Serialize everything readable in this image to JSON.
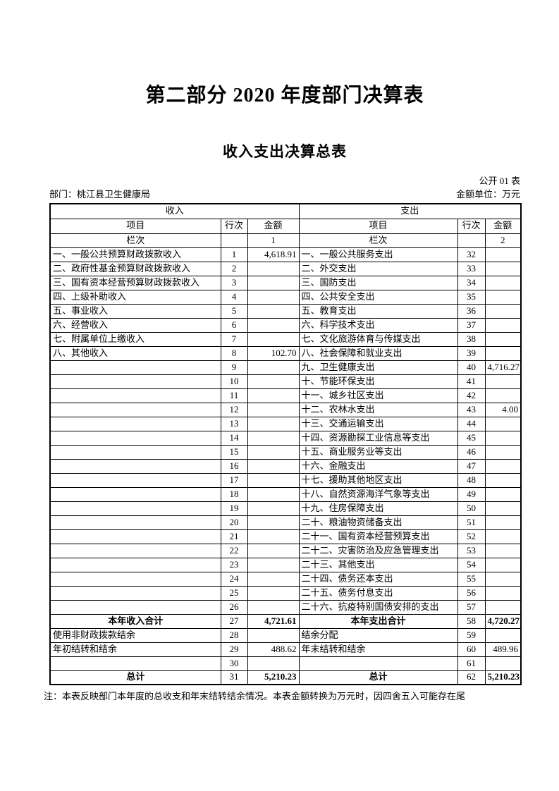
{
  "page": {
    "title": "第二部分 2020 年度部门决算表",
    "subtitle": "收入支出决算总表",
    "table_code": "公开 01 表",
    "department_label": "部门：桃江县卫生健康局",
    "unit_label": "金额单位：万元",
    "note": "注：本表反映部门本年度的总收支和年末结转结余情况。本表金额转换为万元时，因四舍五入可能存在尾"
  },
  "table": {
    "income_header": "收入",
    "expense_header": "支出",
    "col_headers": {
      "item": "项目",
      "row_no": "行次",
      "amount": "金额"
    },
    "lane_label": "栏次",
    "income_lane_no": "1",
    "expense_lane_no": "2",
    "rows": [
      {
        "i_item": "一、一般公共预算财政拨款收入",
        "i_no": "1",
        "i_amt": "4,618.91",
        "e_item": "一、一般公共服务支出",
        "e_no": "32",
        "e_amt": ""
      },
      {
        "i_item": "二、政府性基金预算财政拨款收入",
        "i_no": "2",
        "i_amt": "",
        "e_item": "二、外交支出",
        "e_no": "33",
        "e_amt": ""
      },
      {
        "i_item": "三、国有资本经营预算财政拨款收入",
        "i_no": "3",
        "i_amt": "",
        "e_item": "三、国防支出",
        "e_no": "34",
        "e_amt": ""
      },
      {
        "i_item": "四、上级补助收入",
        "i_no": "4",
        "i_amt": "",
        "e_item": "四、公共安全支出",
        "e_no": "35",
        "e_amt": ""
      },
      {
        "i_item": "五、事业收入",
        "i_no": "5",
        "i_amt": "",
        "e_item": "五、教育支出",
        "e_no": "36",
        "e_amt": ""
      },
      {
        "i_item": "六、经营收入",
        "i_no": "6",
        "i_amt": "",
        "e_item": "六、科学技术支出",
        "e_no": "37",
        "e_amt": ""
      },
      {
        "i_item": "七、附属单位上缴收入",
        "i_no": "7",
        "i_amt": "",
        "e_item": "七、文化旅游体育与传媒支出",
        "e_no": "38",
        "e_amt": ""
      },
      {
        "i_item": "八、其他收入",
        "i_no": "8",
        "i_amt": "102.70",
        "e_item": "八、社会保障和就业支出",
        "e_no": "39",
        "e_amt": ""
      },
      {
        "i_item": "",
        "i_no": "9",
        "i_amt": "",
        "e_item": "九、卫生健康支出",
        "e_no": "40",
        "e_amt": "4,716.27"
      },
      {
        "i_item": "",
        "i_no": "10",
        "i_amt": "",
        "e_item": "十、节能环保支出",
        "e_no": "41",
        "e_amt": ""
      },
      {
        "i_item": "",
        "i_no": "11",
        "i_amt": "",
        "e_item": "十一、城乡社区支出",
        "e_no": "42",
        "e_amt": ""
      },
      {
        "i_item": "",
        "i_no": "12",
        "i_amt": "",
        "e_item": "十二、农林水支出",
        "e_no": "43",
        "e_amt": "4.00"
      },
      {
        "i_item": "",
        "i_no": "13",
        "i_amt": "",
        "e_item": "十三、交通运输支出",
        "e_no": "44",
        "e_amt": ""
      },
      {
        "i_item": "",
        "i_no": "14",
        "i_amt": "",
        "e_item": "十四、资源勘探工业信息等支出",
        "e_no": "45",
        "e_amt": ""
      },
      {
        "i_item": "",
        "i_no": "15",
        "i_amt": "",
        "e_item": "十五、商业服务业等支出",
        "e_no": "46",
        "e_amt": ""
      },
      {
        "i_item": "",
        "i_no": "16",
        "i_amt": "",
        "e_item": "十六、金融支出",
        "e_no": "47",
        "e_amt": ""
      },
      {
        "i_item": "",
        "i_no": "17",
        "i_amt": "",
        "e_item": "十七、援助其他地区支出",
        "e_no": "48",
        "e_amt": ""
      },
      {
        "i_item": "",
        "i_no": "18",
        "i_amt": "",
        "e_item": "十八、自然资源海洋气象等支出",
        "e_no": "49",
        "e_amt": ""
      },
      {
        "i_item": "",
        "i_no": "19",
        "i_amt": "",
        "e_item": "十九、住房保障支出",
        "e_no": "50",
        "e_amt": ""
      },
      {
        "i_item": "",
        "i_no": "20",
        "i_amt": "",
        "e_item": "二十、粮油物资储备支出",
        "e_no": "51",
        "e_amt": ""
      },
      {
        "i_item": "",
        "i_no": "21",
        "i_amt": "",
        "e_item": "二十一、国有资本经营预算支出",
        "e_no": "52",
        "e_amt": ""
      },
      {
        "i_item": "",
        "i_no": "22",
        "i_amt": "",
        "e_item": "二十二、灾害防治及应急管理支出",
        "e_no": "53",
        "e_amt": ""
      },
      {
        "i_item": "",
        "i_no": "23",
        "i_amt": "",
        "e_item": "二十三、其他支出",
        "e_no": "54",
        "e_amt": ""
      },
      {
        "i_item": "",
        "i_no": "24",
        "i_amt": "",
        "e_item": "二十四、债务还本支出",
        "e_no": "55",
        "e_amt": ""
      },
      {
        "i_item": "",
        "i_no": "25",
        "i_amt": "",
        "e_item": "二十五、债务付息支出",
        "e_no": "56",
        "e_amt": ""
      },
      {
        "i_item": "",
        "i_no": "26",
        "i_amt": "",
        "e_item": "二十六、抗疫特别国债安排的支出",
        "e_no": "57",
        "e_amt": ""
      }
    ],
    "summary_rows": [
      {
        "i_item": "本年收入合计",
        "i_no": "27",
        "i_amt": "4,721.61",
        "e_item": "本年支出合计",
        "e_no": "58",
        "e_amt": "4,720.27",
        "bold": true
      },
      {
        "i_item": "使用非财政拨款结余",
        "i_no": "28",
        "i_amt": "",
        "e_item": "结余分配",
        "e_no": "59",
        "e_amt": ""
      },
      {
        "i_item": "年初结转和结余",
        "i_no": "29",
        "i_amt": "488.62",
        "e_item": "年末结转和结余",
        "e_no": "60",
        "e_amt": "489.96"
      },
      {
        "i_item": "",
        "i_no": "30",
        "i_amt": "",
        "e_item": "",
        "e_no": "61",
        "e_amt": ""
      },
      {
        "i_item": "总计",
        "i_no": "31",
        "i_amt": "5,210.23",
        "e_item": "总计",
        "e_no": "62",
        "e_amt": "5,210.23",
        "bold": true
      }
    ]
  }
}
